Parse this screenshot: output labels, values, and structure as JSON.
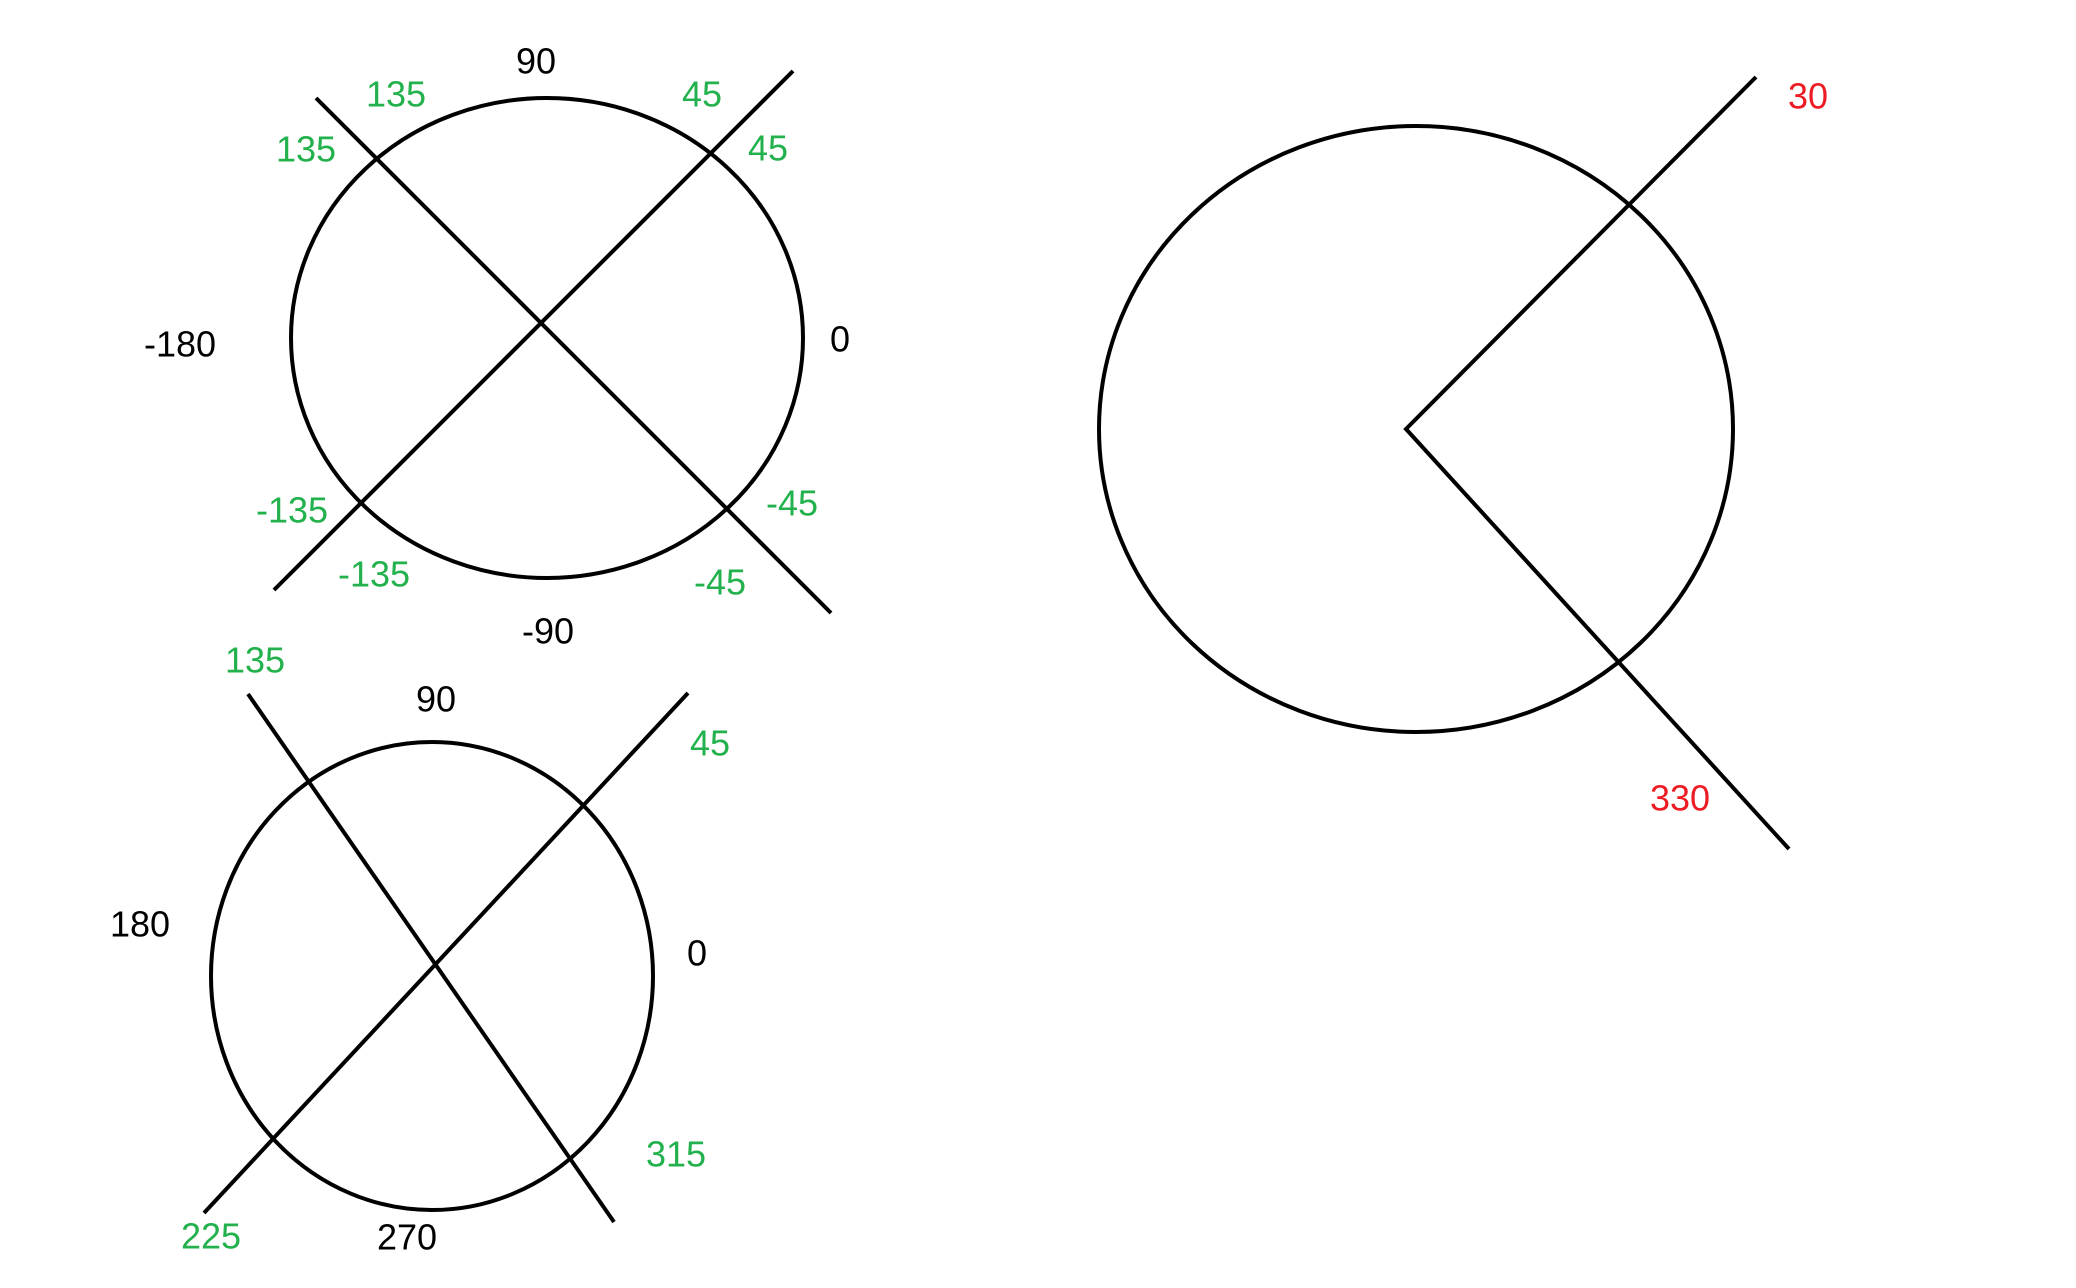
{
  "colors": {
    "black": "#000000",
    "green": "#22b14c",
    "red": "#ed1c24"
  },
  "diagrams": {
    "signed_angles": {
      "labels": {
        "top": "90",
        "right": "0",
        "left": "-180",
        "bottom": "-90",
        "ne_outer": "45",
        "ne_inner": "45",
        "nw_outer": "135",
        "nw_inner": "135",
        "sw_outer": "-135",
        "sw_inner": "-135",
        "se_outer": "-45",
        "se_inner": "-45"
      }
    },
    "unsigned_angles": {
      "labels": {
        "top": "90",
        "right": "0",
        "left": "180",
        "bottom": "270",
        "ne": "45",
        "nw": "135",
        "sw": "225",
        "se": "315"
      }
    },
    "sector": {
      "labels": {
        "upper_ray": "30",
        "lower_ray": "330"
      }
    }
  }
}
